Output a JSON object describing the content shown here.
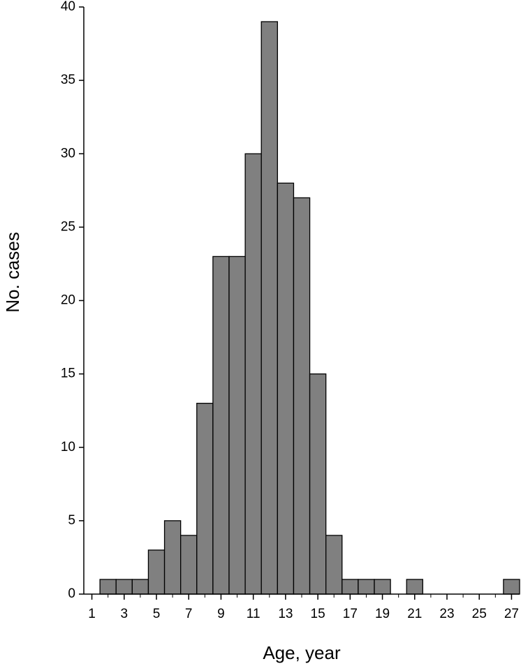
{
  "chart_data": {
    "type": "bar",
    "x": [
      1,
      2,
      3,
      4,
      5,
      6,
      7,
      8,
      9,
      10,
      11,
      12,
      13,
      14,
      15,
      16,
      17,
      18,
      19,
      20,
      21,
      22,
      23,
      24,
      25,
      26,
      27
    ],
    "values": [
      0,
      1,
      1,
      1,
      3,
      5,
      4,
      13,
      23,
      23,
      30,
      39,
      28,
      27,
      15,
      4,
      1,
      1,
      1,
      0,
      1,
      0,
      0,
      0,
      0,
      0,
      1
    ],
    "color": "#808080",
    "xlim": [
      0.5,
      27.5
    ],
    "xticks": [
      1,
      3,
      5,
      7,
      9,
      11,
      13,
      15,
      17,
      19,
      21,
      23,
      25,
      27
    ],
    "ylim": [
      0,
      40
    ],
    "yticks": [
      0,
      5,
      10,
      15,
      20,
      25,
      30,
      35,
      40
    ],
    "x_label": "Age, year",
    "y_label": "No. cases",
    "grid": false
  }
}
